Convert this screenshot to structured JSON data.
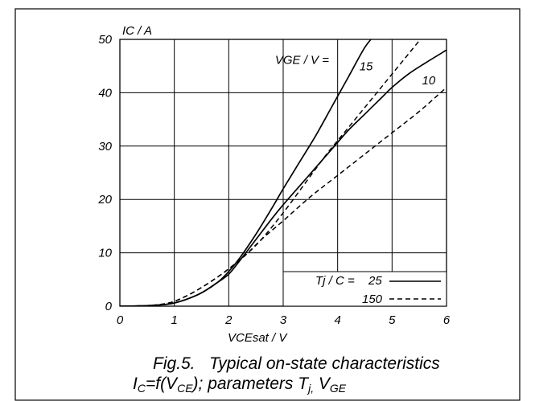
{
  "figure": {
    "caption_line1": "Fig.5.   Typical on-state characteristics",
    "caption_line2": {
      "p1": "I",
      "p1_sub": "C",
      "p2": "=f(V",
      "p2_sub": "CE",
      "p3": "); parameters T",
      "p3_sub": "j,",
      "p4": " V",
      "p4_sub": "GE"
    }
  },
  "chart_data": {
    "type": "line",
    "xlabel": "VCEsat / V",
    "ylabel": "IC / A",
    "xlim": [
      0,
      6
    ],
    "ylim": [
      0,
      50
    ],
    "xticks": [
      0,
      1,
      2,
      3,
      4,
      5,
      6
    ],
    "yticks": [
      0,
      10,
      20,
      30,
      40,
      50
    ],
    "grid": true,
    "legend": {
      "title": "Tj / C =",
      "placement": "bottom-right",
      "entries": [
        {
          "label": "25",
          "style": "solid"
        },
        {
          "label": "150",
          "style": "dashed"
        }
      ]
    },
    "annotations": [
      {
        "text": "VGE / V =",
        "x": 2.85,
        "y": 45.4
      },
      {
        "text": "15",
        "x": 4.4,
        "y": 44.2
      },
      {
        "text": "10",
        "x": 5.55,
        "y": 41.6
      }
    ],
    "series": [
      {
        "vge": 15,
        "tj": 25,
        "style": "solid",
        "x": [
          0,
          0.5,
          0.9,
          1.2,
          1.5,
          1.8,
          2.0,
          2.2,
          2.5,
          2.8,
          3.0,
          3.3,
          3.6,
          3.9,
          4.2,
          4.5,
          4.7
        ],
        "y": [
          0,
          0.1,
          0.4,
          1.2,
          2.5,
          4.5,
          6.5,
          9.0,
          13.5,
          18.5,
          22.0,
          27.0,
          32.0,
          37.5,
          43.0,
          48.5,
          51.0
        ]
      },
      {
        "vge": 15,
        "tj": 150,
        "style": "dashed",
        "x": [
          0,
          0.5,
          0.9,
          1.2,
          1.5,
          1.8,
          2.0,
          2.3,
          2.6,
          3.0,
          3.4,
          3.8,
          4.2,
          4.6,
          5.0,
          5.4,
          5.6
        ],
        "y": [
          0,
          0.1,
          0.6,
          1.8,
          3.5,
          5.5,
          7.0,
          9.5,
          12.5,
          17.5,
          23.0,
          28.5,
          33.5,
          38.5,
          43.5,
          48.5,
          51.0
        ]
      },
      {
        "vge": 10,
        "tj": 25,
        "style": "solid",
        "x": [
          0,
          0.5,
          0.9,
          1.2,
          1.5,
          1.8,
          2.0,
          2.2,
          2.5,
          2.8,
          3.0,
          3.3,
          3.6,
          3.9,
          4.2,
          4.5,
          4.8,
          5.0,
          5.3,
          5.6,
          6.0
        ],
        "y": [
          0,
          0.1,
          0.4,
          1.2,
          2.5,
          4.5,
          6.0,
          8.5,
          12.5,
          16.5,
          19.0,
          22.5,
          26.0,
          29.5,
          33.0,
          36.0,
          39.0,
          41.0,
          43.5,
          45.5,
          48.0
        ]
      },
      {
        "vge": 10,
        "tj": 150,
        "style": "dashed",
        "x": [
          0,
          0.5,
          0.9,
          1.2,
          1.5,
          1.8,
          2.0,
          2.3,
          2.6,
          3.0,
          3.5,
          4.0,
          4.5,
          5.0,
          5.5,
          6.0
        ],
        "y": [
          0,
          0.1,
          0.6,
          1.8,
          3.5,
          5.5,
          7.0,
          9.5,
          12.5,
          16.0,
          20.5,
          24.5,
          28.5,
          32.5,
          36.5,
          41.0
        ]
      }
    ]
  }
}
